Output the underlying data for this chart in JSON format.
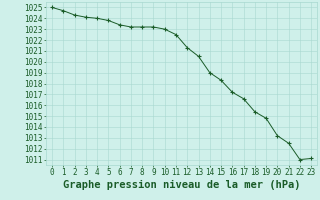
{
  "x": [
    0,
    1,
    2,
    3,
    4,
    5,
    6,
    7,
    8,
    9,
    10,
    11,
    12,
    13,
    14,
    15,
    16,
    17,
    18,
    19,
    20,
    21,
    22,
    23
  ],
  "y": [
    1025.0,
    1024.7,
    1024.3,
    1024.1,
    1024.0,
    1023.8,
    1023.4,
    1023.2,
    1023.2,
    1023.2,
    1023.0,
    1022.5,
    1021.3,
    1020.5,
    1019.0,
    1018.3,
    1017.2,
    1016.6,
    1015.4,
    1014.8,
    1013.2,
    1012.5,
    1011.0,
    1011.1
  ],
  "bg_color": "#cff0ea",
  "grid_color": "#a8d8d0",
  "line_color": "#1a5c28",
  "marker_color": "#1a5c28",
  "xlabel": "Graphe pression niveau de la mer (hPa)",
  "ylim_min": 1010.5,
  "ylim_max": 1025.5,
  "xlim_min": -0.5,
  "xlim_max": 23.5,
  "ytick_min": 1011,
  "ytick_max": 1025,
  "xlabel_fontsize": 7.5,
  "tick_fontsize": 5.5
}
